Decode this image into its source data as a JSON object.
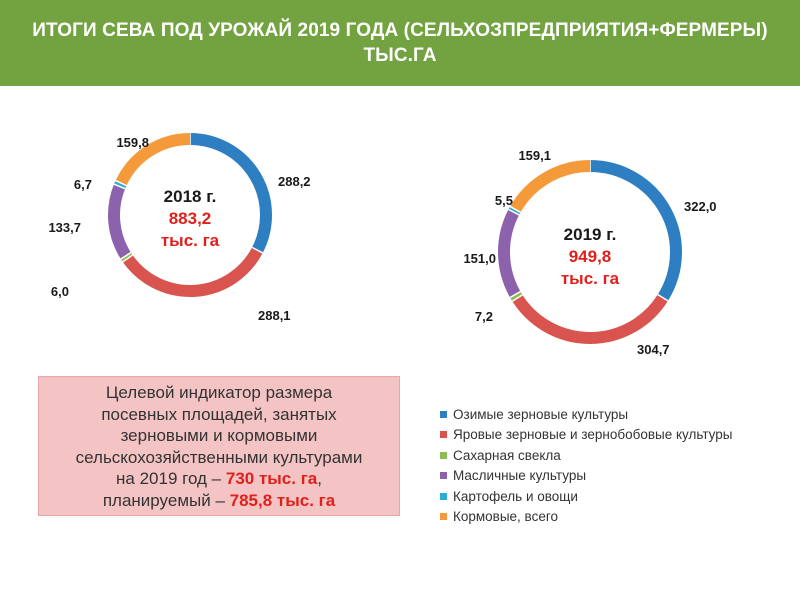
{
  "header": {
    "title_line1": "ИТОГИ СЕВА ПОД УРОЖАЙ 2019 ГОДА (СЕЛЬХОЗПРЕДПРИЯТИЯ+ФЕРМЕРЫ)",
    "title_line2": "ТЫС.ГА"
  },
  "chart_data": [
    {
      "type": "pie",
      "variant": "donut",
      "center": {
        "year": "2018 г.",
        "total": "883,2",
        "unit": "тыс. га"
      },
      "categories": [
        "Озимые зерновые культуры",
        "Яровые зерновые и зернобобовые культуры",
        "Сахарная свекла",
        "Масличные культуры",
        "Картофель и овощи",
        "Кормовые, всего"
      ],
      "values": [
        288.2,
        288.1,
        6.0,
        133.7,
        6.7,
        159.8
      ],
      "value_labels": [
        "288,2",
        "288,1",
        "6,0",
        "133,7",
        "6,7",
        "159,8"
      ]
    },
    {
      "type": "pie",
      "variant": "donut",
      "center": {
        "year": "2019 г.",
        "total": "949,8",
        "unit": "тыс. га"
      },
      "categories": [
        "Озимые зерновые культуры",
        "Яровые зерновые и зернобобовые культуры",
        "Сахарная свекла",
        "Масличные культуры",
        "Картофель и овощи",
        "Кормовые, всего"
      ],
      "values": [
        322.0,
        304.7,
        7.2,
        151.0,
        5.5,
        159.1
      ],
      "value_labels": [
        "322,0",
        "304,7",
        "7,2",
        "151,0",
        "5,5",
        "159,1"
      ]
    }
  ],
  "colors": [
    "#2e7fc1",
    "#d9534f",
    "#8cbd52",
    "#8c62ad",
    "#2aaed1",
    "#f59a3b"
  ],
  "legend": {
    "items": [
      "Озимые зерновые культуры",
      "Яровые зерновые и зернобобовые культуры",
      "Сахарная свекла",
      "Масличные культуры",
      "Картофель и овощи",
      "Кормовые, всего"
    ]
  },
  "indicator": {
    "line1": "Целевой индикатор размера",
    "line2": "посевных площадей, занятых",
    "line3": "зерновыми и кормовыми",
    "line4": "сельскохозяйственными культурами",
    "line5_prefix": "на 2019 год – ",
    "line5_value": "730 тыс. га",
    "line5_suffix": ",",
    "line6_prefix": "планируемый – ",
    "line6_value": "785,8 тыс. га"
  }
}
